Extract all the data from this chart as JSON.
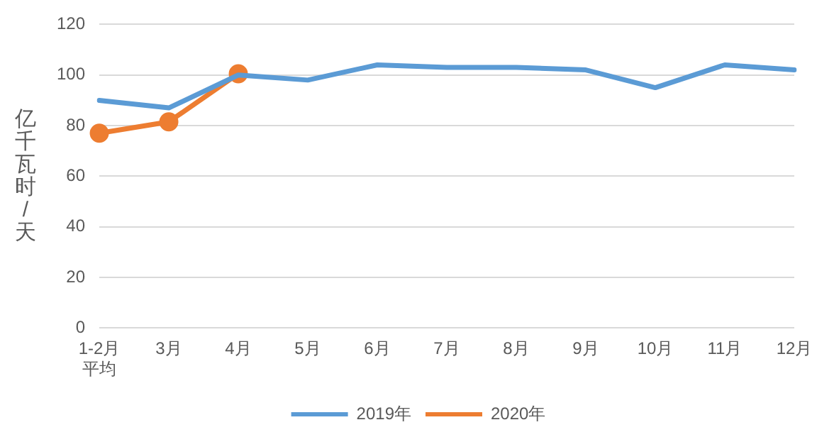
{
  "chart_data": {
    "type": "line",
    "ylabel": "亿千瓦时/天",
    "categories": [
      "1-2月平均",
      "3月",
      "4月",
      "5月",
      "6月",
      "7月",
      "8月",
      "9月",
      "10月",
      "11月",
      "12月"
    ],
    "series": [
      {
        "name": "2019年",
        "color": "#5b9bd5",
        "marker": "none",
        "values": [
          90,
          87,
          100,
          98,
          104,
          103,
          103,
          102,
          95,
          104,
          102
        ]
      },
      {
        "name": "2020年",
        "color": "#ed7d31",
        "marker": "circle",
        "values": [
          77,
          81.5,
          100.5,
          null,
          null,
          null,
          null,
          null,
          null,
          null,
          null
        ]
      }
    ],
    "ylim": [
      0,
      120
    ],
    "yticks": [
      0,
      20,
      40,
      60,
      80,
      100,
      120
    ],
    "grid": "y",
    "legend": "bottom"
  }
}
